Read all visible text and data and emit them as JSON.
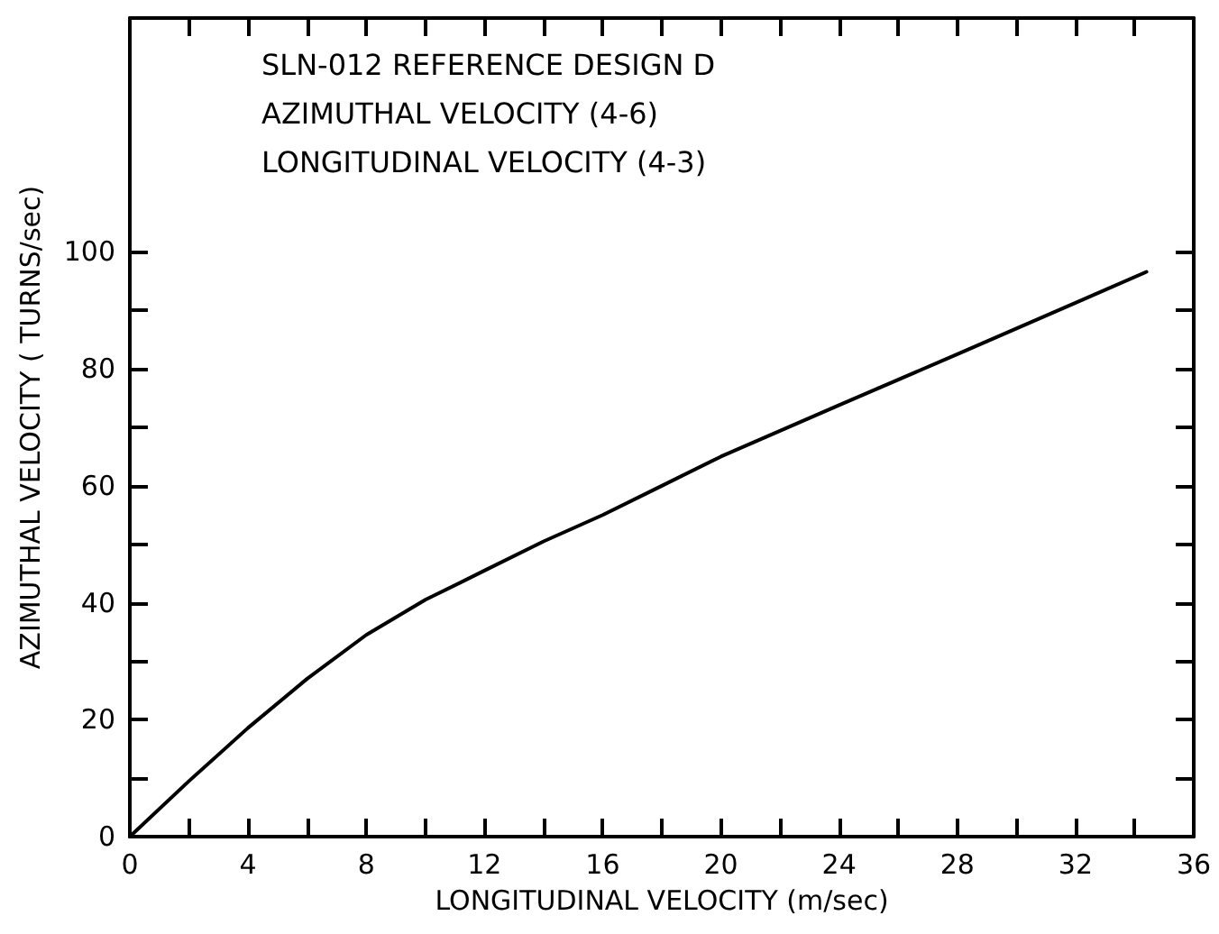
{
  "chart_data": {
    "type": "line",
    "annotations": [
      "SLN-012 REFERENCE DESIGN D",
      "AZIMUTHAL VELOCITY (4-6)",
      "LONGITUDINAL VELOCITY (4-3)"
    ],
    "xlabel": "LONGITUDINAL VELOCITY (m/sec)",
    "ylabel": "AZIMUTHAL VELOCITY ( TURNS/sec)",
    "x": [
      0,
      2,
      4,
      6,
      8,
      10,
      12,
      14,
      16,
      18,
      20,
      24,
      28,
      32,
      34.4
    ],
    "series": [
      {
        "color": "#000000",
        "values": [
          0,
          9.5,
          18.6,
          27,
          34.5,
          40.5,
          45.5,
          50.5,
          55,
          60,
          65,
          73.8,
          82.5,
          91.3,
          96.6
        ]
      }
    ],
    "xlim": [
      0,
      36
    ],
    "xticks": [
      0,
      {
        "value": 2,
        "label": null
      },
      4,
      {
        "value": 6,
        "label": null
      },
      8,
      {
        "value": 10,
        "label": null
      },
      12,
      {
        "value": 14,
        "label": null
      },
      16,
      {
        "value": 18,
        "label": null
      },
      20,
      {
        "value": 22,
        "label": null
      },
      24,
      {
        "value": 26,
        "label": null
      },
      28,
      {
        "value": 30,
        "label": null
      },
      32,
      {
        "value": 34,
        "label": null
      },
      36
    ],
    "ylim": [
      0,
      140
    ],
    "yticks": [
      0,
      {
        "value": 10,
        "label": null
      },
      20,
      {
        "value": 30,
        "label": null
      },
      40,
      {
        "value": 50,
        "label": null
      },
      60,
      {
        "value": 70,
        "label": null
      },
      80,
      {
        "value": 90,
        "label": null
      },
      100
    ],
    "grid": false,
    "marker": "none",
    "line_style": "solid"
  }
}
